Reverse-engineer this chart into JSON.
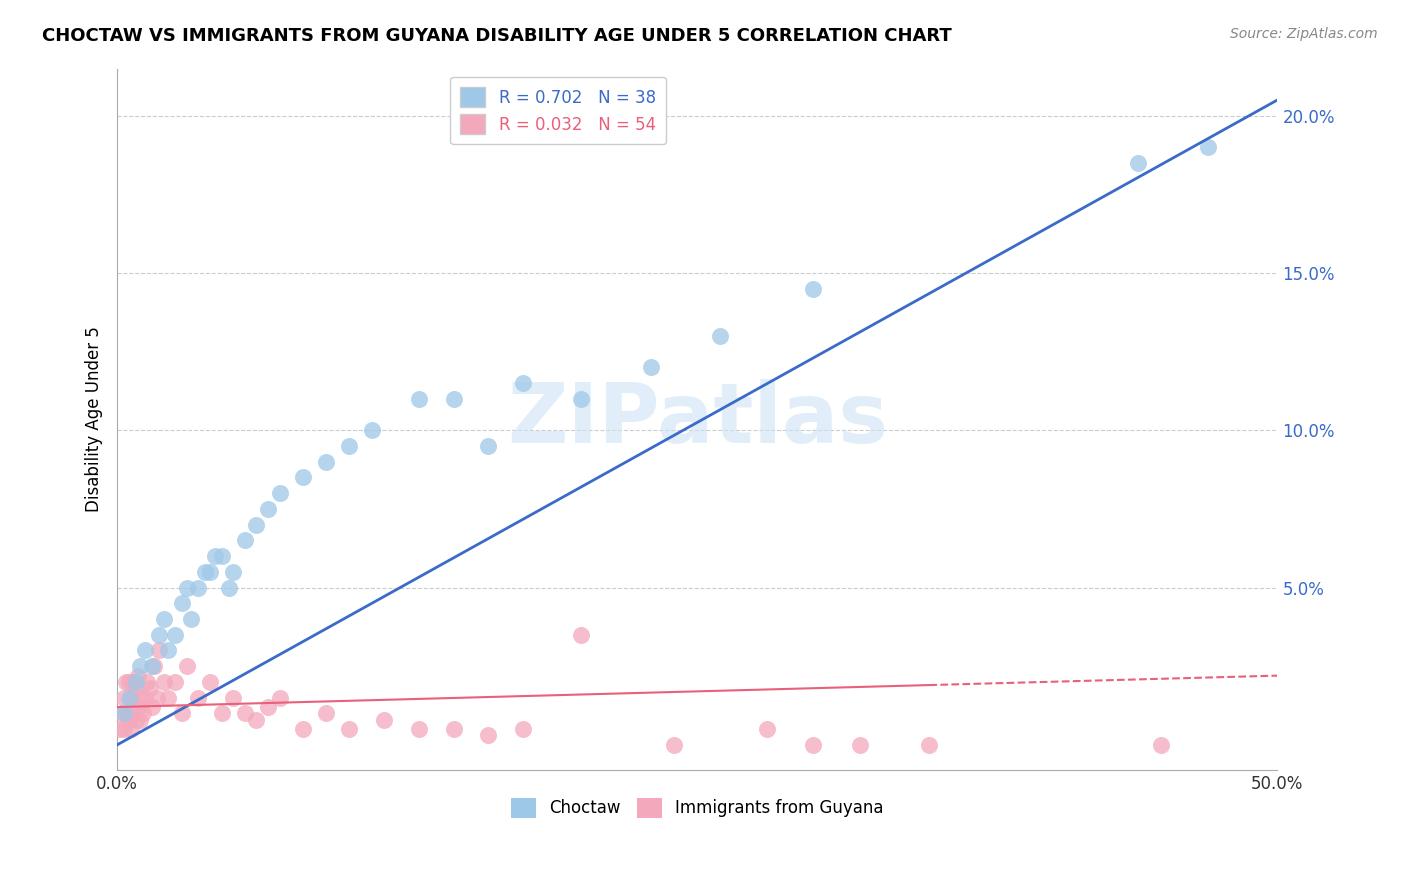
{
  "title": "CHOCTAW VS IMMIGRANTS FROM GUYANA DISABILITY AGE UNDER 5 CORRELATION CHART",
  "source": "Source: ZipAtlas.com",
  "ylabel": "Disability Age Under 5",
  "legend_blue_r": "R = 0.702",
  "legend_blue_n": "N = 38",
  "legend_pink_r": "R = 0.032",
  "legend_pink_n": "N = 54",
  "legend_label_blue": "Choctaw",
  "legend_label_pink": "Immigrants from Guyana",
  "xlim": [
    0.0,
    0.5
  ],
  "ylim": [
    -0.008,
    0.215
  ],
  "yticks": [
    0.0,
    0.05,
    0.1,
    0.15,
    0.2
  ],
  "ytick_labels": [
    "",
    "5.0%",
    "10.0%",
    "15.0%",
    "20.0%"
  ],
  "xticks": [
    0.0,
    0.1,
    0.2,
    0.3,
    0.4,
    0.5
  ],
  "xtick_labels": [
    "0.0%",
    "",
    "",
    "",
    "",
    "50.0%"
  ],
  "blue_color": "#9ec8e8",
  "pink_color": "#f4a8bb",
  "blue_line_color": "#3a6bc8",
  "pink_line_color": "#e8607a",
  "watermark": "ZIPatlas",
  "blue_line_x": [
    0.0,
    0.5
  ],
  "blue_line_y": [
    0.0,
    0.205
  ],
  "pink_line_x": [
    0.0,
    0.5
  ],
  "pink_line_y": [
    0.012,
    0.022
  ],
  "blue_scatter_x": [
    0.003,
    0.005,
    0.008,
    0.01,
    0.012,
    0.015,
    0.018,
    0.02,
    0.022,
    0.025,
    0.028,
    0.03,
    0.032,
    0.035,
    0.038,
    0.04,
    0.042,
    0.045,
    0.048,
    0.05,
    0.055,
    0.06,
    0.065,
    0.07,
    0.08,
    0.09,
    0.1,
    0.11,
    0.13,
    0.145,
    0.16,
    0.175,
    0.2,
    0.23,
    0.26,
    0.3,
    0.44,
    0.47
  ],
  "blue_scatter_y": [
    0.01,
    0.015,
    0.02,
    0.025,
    0.03,
    0.025,
    0.035,
    0.04,
    0.03,
    0.035,
    0.045,
    0.05,
    0.04,
    0.05,
    0.055,
    0.055,
    0.06,
    0.06,
    0.05,
    0.055,
    0.065,
    0.07,
    0.075,
    0.08,
    0.085,
    0.09,
    0.095,
    0.1,
    0.11,
    0.11,
    0.095,
    0.115,
    0.11,
    0.12,
    0.13,
    0.145,
    0.185,
    0.19
  ],
  "pink_scatter_x": [
    0.001,
    0.002,
    0.003,
    0.003,
    0.004,
    0.004,
    0.005,
    0.005,
    0.006,
    0.006,
    0.007,
    0.007,
    0.008,
    0.008,
    0.009,
    0.009,
    0.01,
    0.01,
    0.011,
    0.012,
    0.013,
    0.014,
    0.015,
    0.016,
    0.017,
    0.018,
    0.02,
    0.022,
    0.025,
    0.028,
    0.03,
    0.035,
    0.04,
    0.045,
    0.05,
    0.055,
    0.06,
    0.065,
    0.07,
    0.08,
    0.09,
    0.1,
    0.115,
    0.13,
    0.145,
    0.16,
    0.175,
    0.2,
    0.24,
    0.28,
    0.3,
    0.32,
    0.35,
    0.45
  ],
  "pink_scatter_y": [
    0.005,
    0.01,
    0.005,
    0.015,
    0.01,
    0.02,
    0.008,
    0.02,
    0.005,
    0.015,
    0.01,
    0.02,
    0.008,
    0.018,
    0.012,
    0.022,
    0.008,
    0.015,
    0.01,
    0.015,
    0.02,
    0.018,
    0.012,
    0.025,
    0.015,
    0.03,
    0.02,
    0.015,
    0.02,
    0.01,
    0.025,
    0.015,
    0.02,
    0.01,
    0.015,
    0.01,
    0.008,
    0.012,
    0.015,
    0.005,
    0.01,
    0.005,
    0.008,
    0.005,
    0.005,
    0.003,
    0.005,
    0.035,
    0.0,
    0.005,
    0.0,
    0.0,
    0.0,
    0.0
  ]
}
